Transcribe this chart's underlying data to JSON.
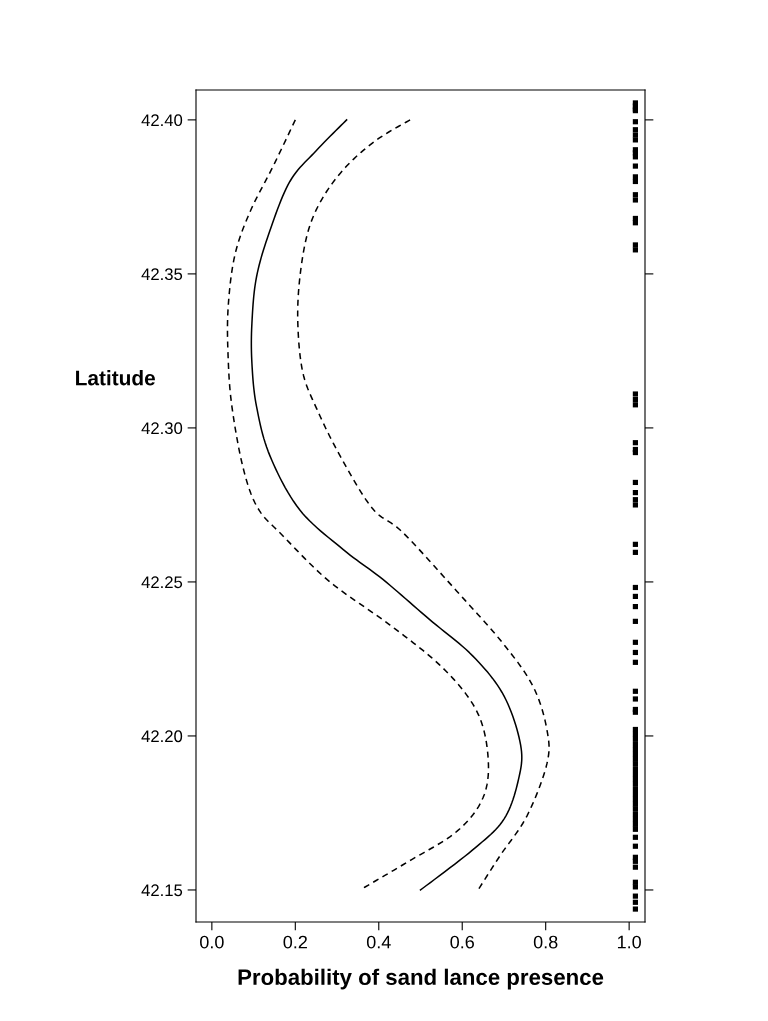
{
  "chart_data": {
    "type": "line",
    "xlabel": "Probability of sand lance presence",
    "ylabel": "Latitude",
    "xlim": [
      -0.038,
      1.038
    ],
    "ylim": [
      42.1396,
      42.4097
    ],
    "xticks": [
      {
        "value": 0,
        "label": "0.0"
      },
      {
        "value": 0.2,
        "label": "0.2"
      },
      {
        "value": 0.4,
        "label": "0.4"
      },
      {
        "value": 0.6,
        "label": "0.6"
      },
      {
        "value": 0.8,
        "label": "0.8"
      },
      {
        "value": 1,
        "label": "1.0"
      }
    ],
    "yticks": [
      {
        "value": 42.15,
        "label": "42.15"
      },
      {
        "value": 42.2,
        "label": "42.20"
      },
      {
        "value": 42.25,
        "label": "42.25"
      },
      {
        "value": 42.3,
        "label": "42.30"
      },
      {
        "value": 42.35,
        "label": "42.35"
      },
      {
        "value": 42.4,
        "label": "42.40"
      }
    ],
    "grid": false,
    "legend": false,
    "series": [
      {
        "color": "#000000",
        "line_style": "solid",
        "x": [
          0.323,
          0.25,
          0.187,
          0.139,
          0.107,
          0.096,
          0.096,
          0.107,
          0.139,
          0.21,
          0.315,
          0.41,
          0.52,
          0.625,
          0.7,
          0.74,
          0.735,
          0.7,
          0.625,
          0.5
        ],
        "values": [
          42.4,
          42.39,
          42.38,
          42.364,
          42.349,
          42.334,
          42.321,
          42.307,
          42.291,
          42.2735,
          42.2605,
          42.2508,
          42.238,
          42.226,
          42.213,
          42.197,
          42.186,
          42.173,
          42.163,
          42.15
        ]
      },
      {
        "color": "#000000",
        "line_style": "dashed",
        "x": [
          0.2,
          0.147,
          0.091,
          0.055,
          0.039,
          0.039,
          0.048,
          0.075,
          0.11,
          0.17,
          0.283,
          0.427,
          0.554,
          0.635,
          0.662,
          0.65,
          0.587,
          0.468,
          0.355
        ],
        "values": [
          42.4,
          42.385,
          42.37,
          42.356,
          42.339,
          42.323,
          42.307,
          42.287,
          42.274,
          42.265,
          42.25,
          42.236,
          42.222,
          42.208,
          42.193,
          42.18,
          42.169,
          42.159,
          42.15
        ]
      },
      {
        "color": "#000000",
        "line_style": "dashed",
        "x": [
          0.475,
          0.395,
          0.323,
          0.267,
          0.231,
          0.211,
          0.206,
          0.218,
          0.252,
          0.307,
          0.384,
          0.458,
          0.587,
          0.698,
          0.77,
          0.803,
          0.803,
          0.755,
          0.69,
          0.638
        ],
        "values": [
          42.4,
          42.3935,
          42.385,
          42.375,
          42.364,
          42.349,
          42.334,
          42.318,
          42.306,
          42.291,
          42.274,
          42.266,
          42.247,
          42.23,
          42.216,
          42.202,
          42.191,
          42.174,
          42.161,
          42.15
        ]
      },
      {
        "type": "scatter",
        "marker": "square",
        "color": "#000000",
        "x": [
          1.015,
          1.015,
          1.015,
          1.015,
          1.015,
          1.015,
          1.015,
          1.015,
          1.015,
          1.015,
          1.015,
          1.015,
          1.015,
          1.015,
          1.015,
          1.015,
          1.015,
          1.015,
          1.015,
          1.015,
          1.015,
          1.015,
          1.015,
          1.015,
          1.015,
          1.015,
          1.015,
          1.015,
          1.015,
          1.015,
          1.015,
          1.015,
          1.015,
          1.015,
          1.015,
          1.015,
          1.015,
          1.015,
          1.015,
          1.015,
          1.015,
          1.015,
          1.015,
          1.015,
          1.015,
          1.015,
          1.015,
          1.015,
          1.015,
          1.015,
          1.015,
          1.015,
          1.015,
          1.015,
          1.015,
          1.015,
          1.015,
          1.015,
          1.015,
          1.015,
          1.015,
          1.015,
          1.015,
          1.015,
          1.015,
          1.015,
          1.015,
          1.015,
          1.015,
          1.015,
          1.015,
          1.015,
          1.015,
          1.015
        ],
        "values": [
          42.4055,
          42.4045,
          42.4035,
          42.403,
          42.3994,
          42.3968,
          42.3951,
          42.3935,
          42.3903,
          42.3893,
          42.388,
          42.385,
          42.3815,
          42.38,
          42.3757,
          42.374,
          42.368,
          42.3666,
          42.3594,
          42.3578,
          42.311,
          42.3092,
          42.3075,
          42.2952,
          42.293,
          42.292,
          42.2823,
          42.279,
          42.2767,
          42.275,
          42.2622,
          42.2596,
          42.2482,
          42.2453,
          42.242,
          42.2372,
          42.2304,
          42.2271,
          42.2239,
          42.2145,
          42.212,
          42.2086,
          42.2077,
          42.2021,
          42.2005,
          42.1989,
          42.1972,
          42.1956,
          42.194,
          42.1924,
          42.1908,
          42.1891,
          42.1875,
          42.1859,
          42.1843,
          42.1826,
          42.181,
          42.1794,
          42.1778,
          42.1762,
          42.1745,
          42.1729,
          42.1713,
          42.1697,
          42.1671,
          42.1642,
          42.1606,
          42.1593,
          42.1574,
          42.1525,
          42.151,
          42.148,
          42.146,
          42.1438
        ]
      }
    ]
  }
}
